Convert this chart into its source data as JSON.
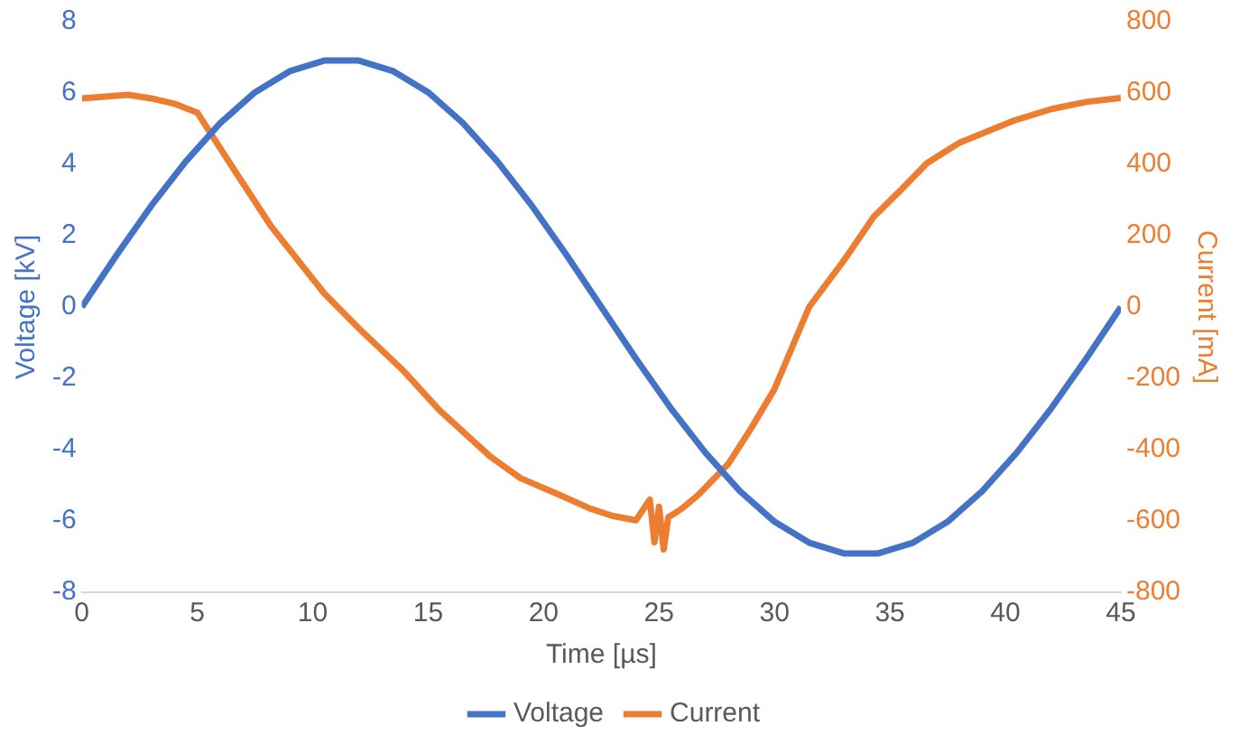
{
  "chart_data": {
    "type": "line",
    "xlabel": "Time [µs]",
    "ylabel": "Voltage [kV]",
    "y2label": "Current [mA]",
    "xlim": [
      0,
      45
    ],
    "xticks": [
      0,
      5,
      10,
      15,
      20,
      25,
      30,
      35,
      40,
      45
    ],
    "ylim": [
      -8,
      8
    ],
    "yticks": [
      -8,
      -6,
      -4,
      -2,
      0,
      2,
      4,
      6,
      8
    ],
    "y2lim": [
      -800,
      800
    ],
    "y2ticks": [
      -800,
      -600,
      -400,
      -200,
      0,
      200,
      400,
      600,
      800
    ],
    "grid": false,
    "legend": "bottom",
    "marker": "none",
    "line_style": "solid",
    "series": [
      {
        "name": "Voltage",
        "color": "#4472c4",
        "x": [
          0,
          1.5,
          3,
          4.5,
          6,
          7.5,
          9,
          10.5,
          12,
          13.5,
          15,
          16.5,
          18,
          19.5,
          21,
          22.5,
          24,
          25.5,
          27,
          28.5,
          30,
          31.5,
          33,
          34.5,
          36,
          37.5,
          39,
          40.5,
          42,
          43.5,
          45
        ],
        "values": [
          0,
          1.45,
          2.83,
          4.08,
          5.16,
          6.02,
          6.61,
          6.91,
          6.91,
          6.61,
          6.02,
          5.16,
          4.08,
          2.83,
          1.45,
          0,
          -1.45,
          -2.83,
          -4.08,
          -5.16,
          -6.02,
          -6.61,
          -6.91,
          -6.91,
          -6.61,
          -6.02,
          -5.16,
          -4.08,
          -2.83,
          -1.45,
          0
        ]
      },
      {
        "name": "Current",
        "color": "#ed7d31",
        "axis": "y2",
        "x": [
          0,
          1,
          2,
          3,
          4,
          5,
          6.3,
          8.2,
          10.5,
          12,
          13.9,
          15.5,
          17.7,
          19,
          20.7,
          22,
          23,
          24,
          24.6,
          24.8,
          25,
          25.2,
          25.4,
          26,
          26.7,
          28,
          29,
          30,
          31.5,
          33,
          34.3,
          35.5,
          36.6,
          38,
          40.3,
          42,
          43.5,
          45
        ],
        "values": [
          585,
          590,
          595,
          585,
          570,
          545,
          414,
          226,
          38,
          -60,
          -177,
          -290,
          -420,
          -480,
          -527,
          -565,
          -586,
          -598,
          -540,
          -660,
          -560,
          -680,
          -590,
          -565,
          -527,
          -440,
          -339,
          -230,
          0,
          130,
          253,
          330,
          403,
          460,
          521,
          555,
          575,
          586
        ]
      }
    ]
  }
}
